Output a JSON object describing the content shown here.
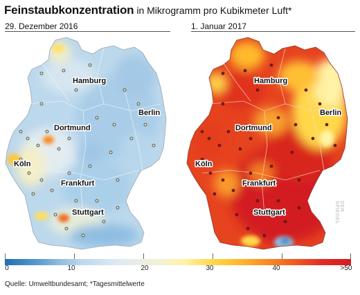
{
  "title": "Feinstaubkonzentration",
  "subtitle": "in Mikrogramm pro Kubikmeter Luft*",
  "maps": [
    {
      "date": "29. Dezember 2016"
    },
    {
      "date": "1. Januar 2017"
    }
  ],
  "cities": {
    "hamburg": "Hamburg",
    "berlin": "Berlin",
    "dortmund": "Dortmund",
    "koeln": "Köln",
    "frankfurt": "Frankfurt",
    "stuttgart": "Stuttgart"
  },
  "legend": {
    "ticks": [
      "0",
      "10",
      "20",
      "30",
      "40",
      ">50"
    ],
    "colors": [
      "#1f6fb2",
      "#bcd8ec",
      "#f4f0d4",
      "#ffd84a",
      "#fa8a23",
      "#d31d23"
    ]
  },
  "source": "Quelle: Umweltbundesamt; *Tagesmittelwerte",
  "watermark": "DER SPIEGEL"
}
